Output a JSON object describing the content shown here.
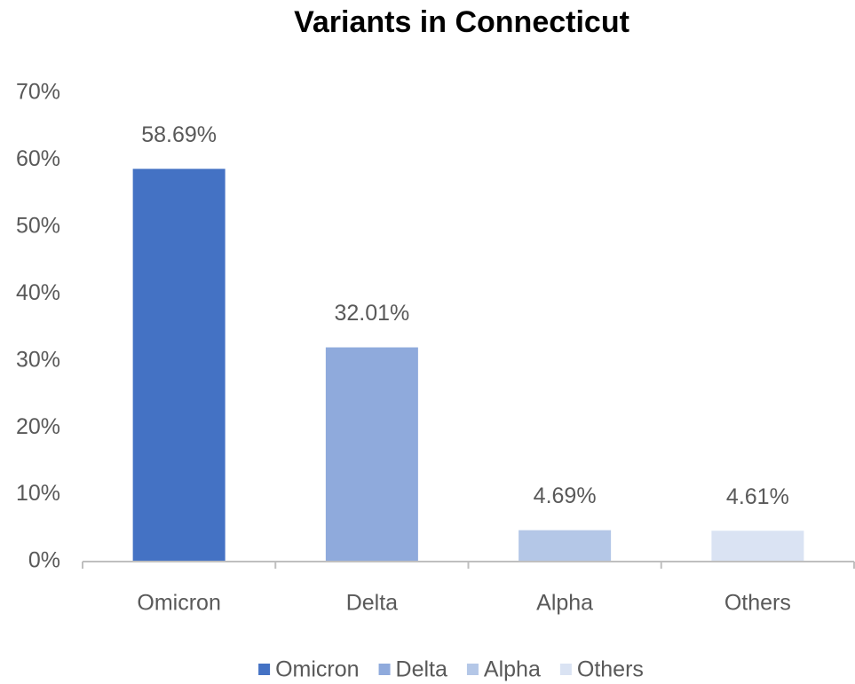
{
  "chart_data": {
    "type": "bar",
    "title": "Variants in Connecticut",
    "categories": [
      "Omicron",
      "Delta",
      "Alpha",
      "Others"
    ],
    "values": [
      58.69,
      32.01,
      4.69,
      4.61
    ],
    "value_labels": [
      "58.69%",
      "32.01%",
      "4.69%",
      "4.61%"
    ],
    "colors": [
      "#4472c4",
      "#8faadc",
      "#b4c7e7",
      "#dae3f3"
    ],
    "ylim": [
      0,
      70
    ],
    "yticks": [
      {
        "value": 0,
        "label": "0%"
      },
      {
        "value": 10,
        "label": "10%"
      },
      {
        "value": 20,
        "label": "20%"
      },
      {
        "value": 30,
        "label": "30%"
      },
      {
        "value": 40,
        "label": "40%"
      },
      {
        "value": 50,
        "label": "50%"
      },
      {
        "value": 60,
        "label": "60%"
      },
      {
        "value": 70,
        "label": "70%"
      }
    ],
    "grid": false,
    "legend": "bottom"
  }
}
